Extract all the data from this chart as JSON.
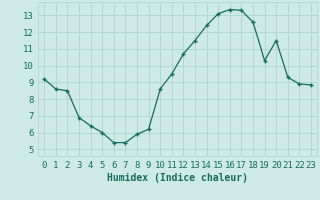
{
  "x": [
    0,
    1,
    2,
    3,
    4,
    5,
    6,
    7,
    8,
    9,
    10,
    11,
    12,
    13,
    14,
    15,
    16,
    17,
    18,
    19,
    20,
    21,
    22,
    23
  ],
  "y": [
    9.2,
    8.6,
    8.5,
    6.9,
    6.4,
    6.0,
    5.4,
    5.4,
    5.9,
    6.2,
    8.6,
    9.5,
    10.7,
    11.5,
    12.4,
    13.1,
    13.35,
    13.3,
    12.6,
    10.3,
    11.5,
    9.3,
    8.9,
    8.85
  ],
  "xlim": [
    -0.5,
    23.5
  ],
  "ylim": [
    4.6,
    13.8
  ],
  "yticks": [
    5,
    6,
    7,
    8,
    9,
    10,
    11,
    12,
    13
  ],
  "xticks": [
    0,
    1,
    2,
    3,
    4,
    5,
    6,
    7,
    8,
    9,
    10,
    11,
    12,
    13,
    14,
    15,
    16,
    17,
    18,
    19,
    20,
    21,
    22,
    23
  ],
  "xlabel": "Humidex (Indice chaleur)",
  "line_color": "#1a6b5a",
  "marker": "+",
  "bg_color": "#ceeae7",
  "grid_color": "#afd4d0",
  "label_color": "#1a6b5a",
  "xlabel_fontsize": 7,
  "tick_fontsize": 6.5
}
